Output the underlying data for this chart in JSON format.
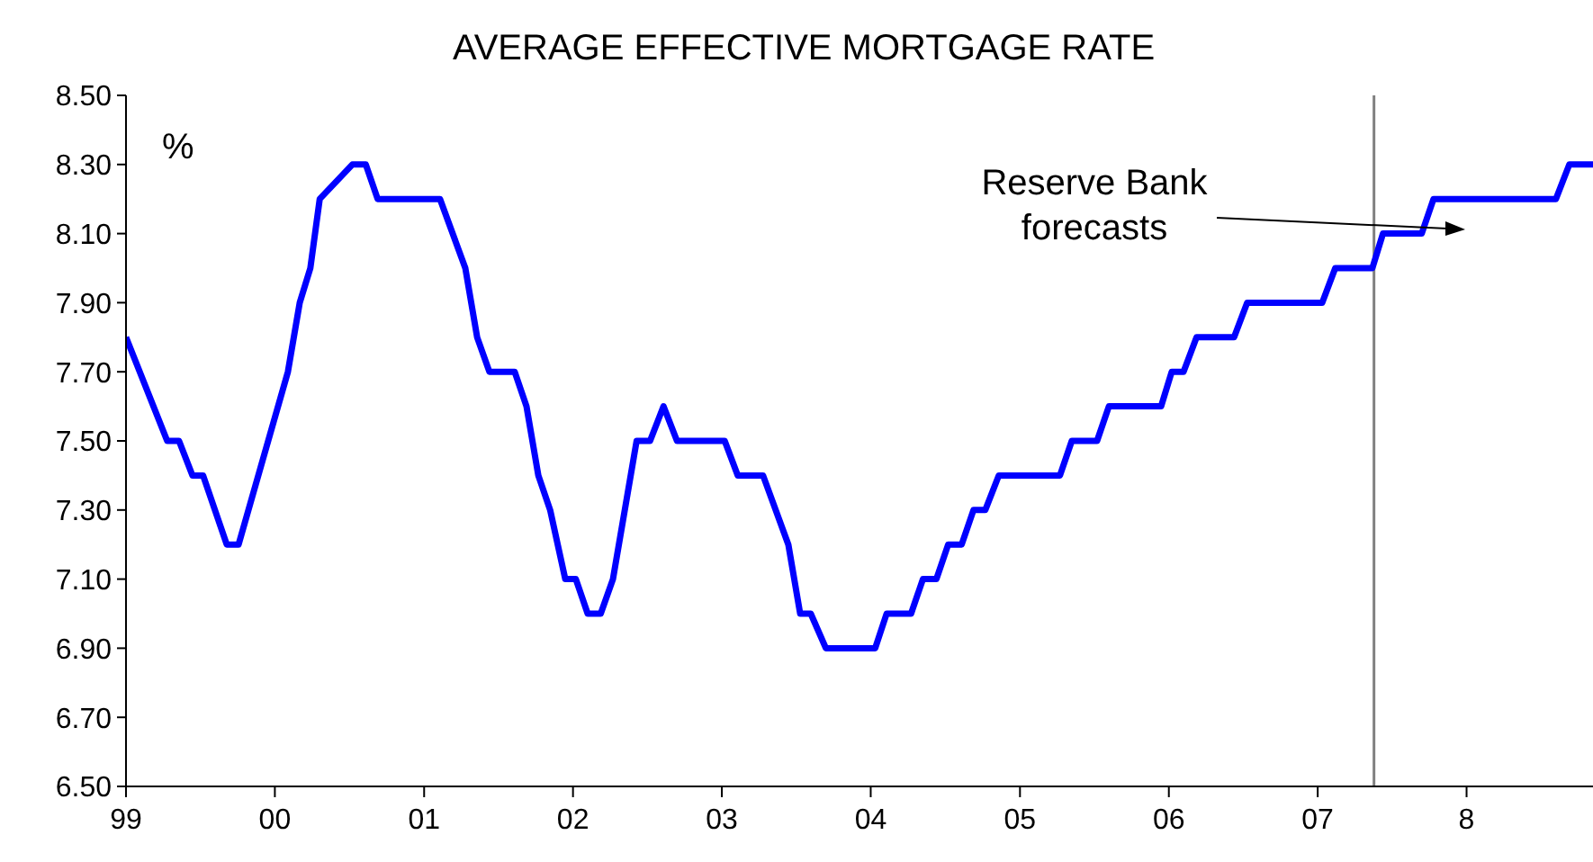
{
  "chart_data": {
    "type": "line",
    "title": "AVERAGE EFFECTIVE MORTGAGE RATE",
    "ylabel": "%",
    "annotations": [
      "Reserve Bank forecasts"
    ],
    "x": [
      "1999-01-01",
      "1999-04-12",
      "1999-05-11",
      "1999-06-13",
      "1999-07-09",
      "1999-09-05",
      "1999-10-04",
      "2000-02-02",
      "2000-03-02",
      "2000-03-28",
      "2000-04-20",
      "2000-07-09",
      "2000-08-11",
      "2000-09-09",
      "2001-02-09",
      "2001-04-12",
      "2001-05-11",
      "2001-06-10",
      "2001-08-11",
      "2001-09-09",
      "2001-10-08",
      "2001-11-06",
      "2001-12-13",
      "2002-01-08",
      "2002-02-06",
      "2002-03-10",
      "2002-04-09",
      "2002-06-06",
      "2002-07-09",
      "2002-08-11",
      "2002-09-13",
      "2003-01-08",
      "2003-02-09",
      "2003-04-12",
      "2003-06-13",
      "2003-07-12",
      "2003-08-07",
      "2003-09-13",
      "2004-01-12",
      "2004-02-09",
      "2004-04-09",
      "2004-05-08",
      "2004-06-10",
      "2004-07-09",
      "2004-08-11",
      "2004-09-09",
      "2004-10-08",
      "2004-11-10",
      "2005-04-09",
      "2005-05-08",
      "2005-07-09",
      "2005-08-07",
      "2005-12-13",
      "2006-01-08",
      "2006-02-06",
      "2006-03-10",
      "2006-06-10",
      "2006-07-12",
      "2007-01-12",
      "2007-02-13",
      "2007-05-15",
      "2007-06-10",
      "2007-09-13",
      "2007-10-12",
      "2008-08-07",
      "2008-09-09",
      "2008-11-06"
    ],
    "series": [
      {
        "color": "#0000ff",
        "values": [
          7.8,
          7.5,
          7.5,
          7.4,
          7.4,
          7.2,
          7.2,
          7.7,
          7.9,
          8.0,
          8.2,
          8.3,
          8.3,
          8.2,
          8.2,
          8.0,
          7.8,
          7.7,
          7.7,
          7.6,
          7.4,
          7.3,
          7.1,
          7.1,
          7.0,
          7.0,
          7.1,
          7.5,
          7.5,
          7.6,
          7.5,
          7.5,
          7.4,
          7.4,
          7.2,
          7.0,
          7.0,
          6.9,
          6.9,
          7.0,
          7.0,
          7.1,
          7.1,
          7.2,
          7.2,
          7.3,
          7.3,
          7.4,
          7.4,
          7.5,
          7.5,
          7.6,
          7.6,
          7.7,
          7.7,
          7.8,
          7.8,
          7.9,
          7.9,
          8.0,
          8.0,
          8.1,
          8.1,
          8.2,
          8.2,
          8.3,
          8.3
        ]
      }
    ],
    "xlim": [
      "1999-01-01",
      "2008-11-06"
    ],
    "xticks": [
      {
        "value": "1999",
        "label": "99"
      },
      {
        "value": "2000",
        "label": "00"
      },
      {
        "value": "2001",
        "label": "01"
      },
      {
        "value": "2002",
        "label": "02"
      },
      {
        "value": "2003",
        "label": "03"
      },
      {
        "value": "2004",
        "label": "04"
      },
      {
        "value": "2005",
        "label": "05"
      },
      {
        "value": "2006",
        "label": "06"
      },
      {
        "value": "2007",
        "label": "07"
      },
      {
        "value": "2008",
        "label": "8"
      }
    ],
    "ylim": [
      6.5,
      8.5
    ],
    "yticks": [
      {
        "value": 6.5,
        "label": "6.50"
      },
      {
        "value": 6.7,
        "label": "6.70"
      },
      {
        "value": 6.9,
        "label": "6.90"
      },
      {
        "value": 7.1,
        "label": "7.10"
      },
      {
        "value": 7.3,
        "label": "7.30"
      },
      {
        "value": 7.5,
        "label": "7.50"
      },
      {
        "value": 7.7,
        "label": "7.70"
      },
      {
        "value": 7.9,
        "label": "7.90"
      },
      {
        "value": 8.1,
        "label": "8.10"
      },
      {
        "value": 8.3,
        "label": "8.30"
      },
      {
        "value": 8.5,
        "label": "8.50"
      }
    ],
    "ref_lines": [
      {
        "axis": "x",
        "value": "2007-05-19",
        "color": "#808080"
      }
    ],
    "grid": false,
    "legend": false,
    "marker": "none",
    "line_style": "solid"
  }
}
